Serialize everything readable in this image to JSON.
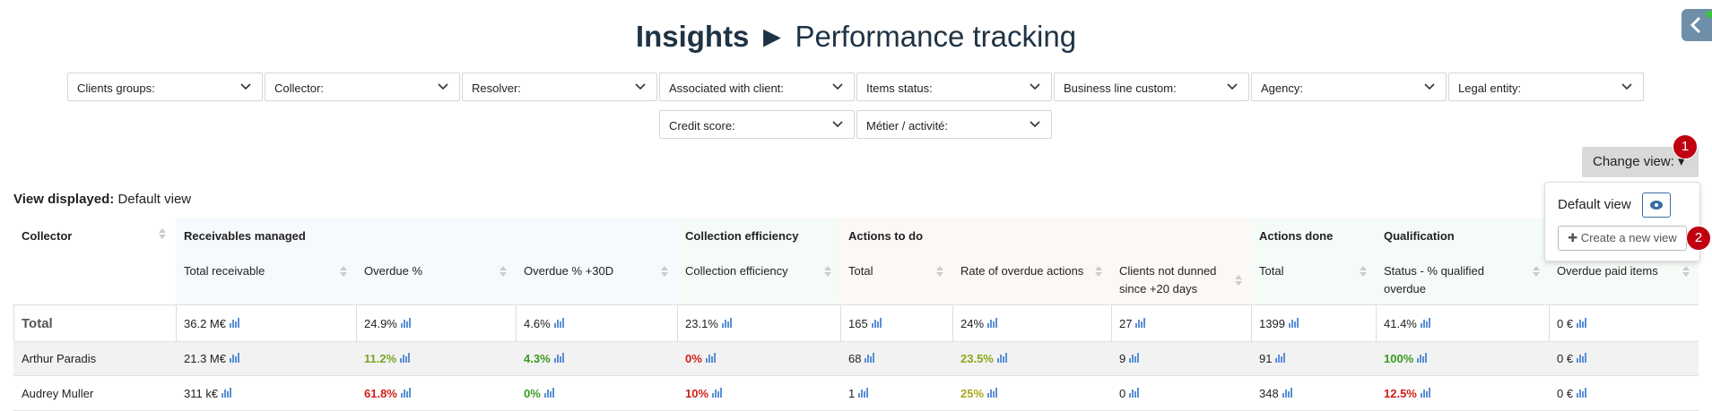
{
  "header": {
    "title": "Insights",
    "separator": "►",
    "subtitle": "Performance tracking"
  },
  "filters": [
    "Clients groups:",
    "Collector:",
    "Resolver:",
    "Associated with client:",
    "Items status:",
    "Business line custom:",
    "Agency:",
    "Legal entity:",
    "Credit score:",
    "Métier / activité:"
  ],
  "change_view": {
    "label": "Change view:",
    "badges": [
      "1",
      "2"
    ]
  },
  "view_menu": {
    "items": [
      "Default view",
      "Create a new view"
    ]
  },
  "view_displayed": {
    "label": "View displayed:",
    "value": "Default view"
  },
  "table": {
    "first_column": "Collector",
    "groups": [
      {
        "label": "Receivables managed",
        "color": "#f6f9fd",
        "columns": [
          "Total receivable",
          "Overdue %",
          "Overdue % +30D"
        ]
      },
      {
        "label": "Collection efficiency",
        "color": "#f5fbf6",
        "columns": [
          "Collection efficiency"
        ]
      },
      {
        "label": "Actions to do",
        "color": "#fdf7f6",
        "columns": [
          "Total",
          "Rate of overdue actions",
          "Clients not dunned since +20 days"
        ]
      },
      {
        "label": "Actions done",
        "color": "#f5fbf6",
        "columns": [
          "Total"
        ]
      },
      {
        "label": "Qualification",
        "color": "#f5fbf6",
        "columns": [
          "Status - % qualified overdue",
          "Overdue paid items"
        ]
      }
    ],
    "rows": [
      {
        "label": "Total",
        "cells": [
          {
            "text": "36.2 M€"
          },
          {
            "text": "24.9%"
          },
          {
            "text": "4.6%"
          },
          {
            "text": "23.1%"
          },
          {
            "text": "165"
          },
          {
            "text": "24%"
          },
          {
            "text": "27"
          },
          {
            "text": "1399"
          },
          {
            "text": "41.4%"
          },
          {
            "text": "0 €"
          }
        ]
      },
      {
        "label": "Arthur Paradis",
        "cells": [
          {
            "text": "21.3 M€"
          },
          {
            "text": "11.2%",
            "color": "#7aa52a"
          },
          {
            "text": "4.3%",
            "color": "#3a9a1f"
          },
          {
            "text": "0%",
            "color": "#d0201a"
          },
          {
            "text": "68"
          },
          {
            "text": "23.5%",
            "color": "#8aa81b"
          },
          {
            "text": "9"
          },
          {
            "text": "91"
          },
          {
            "text": "100%",
            "color": "#3a9a1f"
          },
          {
            "text": "0 €"
          }
        ]
      },
      {
        "label": "Audrey Muller",
        "cells": [
          {
            "text": "311 k€"
          },
          {
            "text": "61.8%",
            "color": "#d0201a"
          },
          {
            "text": "0%",
            "color": "#3a9a1f"
          },
          {
            "text": "10%",
            "color": "#d0201a"
          },
          {
            "text": "1"
          },
          {
            "text": "25%",
            "color": "#a8a81b"
          },
          {
            "text": "0"
          },
          {
            "text": "348"
          },
          {
            "text": "12.5%",
            "color": "#d0201a"
          },
          {
            "text": "0 €"
          }
        ]
      }
    ]
  }
}
